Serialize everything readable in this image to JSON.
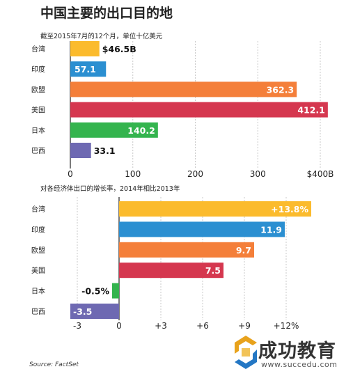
{
  "title": "中国主要的出口目的地",
  "source": "Source: FactSet",
  "logo": {
    "name": "成功教育",
    "url": "www.succedu.com"
  },
  "chart_data": [
    {
      "type": "bar",
      "orientation": "horizontal",
      "subtitle": "截至2015年7月的12个月，单位十亿美元",
      "categories": [
        "台湾",
        "印度",
        "欧盟",
        "美国",
        "日本",
        "巴西"
      ],
      "values": [
        46.5,
        57.1,
        362.3,
        412.1,
        140.2,
        33.1
      ],
      "value_labels": [
        "$46.5B",
        "57.1",
        "362.3",
        "412.1",
        "140.2",
        "33.1"
      ],
      "colors": [
        "#fbbb2d",
        "#2b8fd1",
        "#f47f3a",
        "#d5374f",
        "#34b44e",
        "#6e69b2"
      ],
      "xlim": [
        0,
        400
      ],
      "ticks": [
        0,
        100,
        200,
        300,
        400
      ],
      "tick_labels": [
        "0",
        "100",
        "200",
        "300",
        "$400B"
      ],
      "grid": true
    },
    {
      "type": "bar",
      "orientation": "horizontal",
      "subtitle": "对各经济体出口的增长率，2014年相比2013年",
      "categories": [
        "台湾",
        "印度",
        "欧盟",
        "美国",
        "日本",
        "巴西"
      ],
      "values": [
        13.8,
        11.9,
        9.7,
        7.5,
        -0.5,
        -3.5
      ],
      "value_labels": [
        "+13.8%",
        "11.9",
        "9.7",
        "7.5",
        "-0.5%",
        "-3.5"
      ],
      "colors": [
        "#fbbb2d",
        "#2b8fd1",
        "#f47f3a",
        "#d5374f",
        "#34b44e",
        "#6e69b2"
      ],
      "xlim": [
        -3.5,
        14
      ],
      "ticks": [
        -3,
        0,
        3,
        6,
        9,
        12
      ],
      "tick_labels": [
        "-3",
        "0",
        "+3",
        "+6",
        "+9",
        "+12%"
      ],
      "grid": true
    }
  ]
}
